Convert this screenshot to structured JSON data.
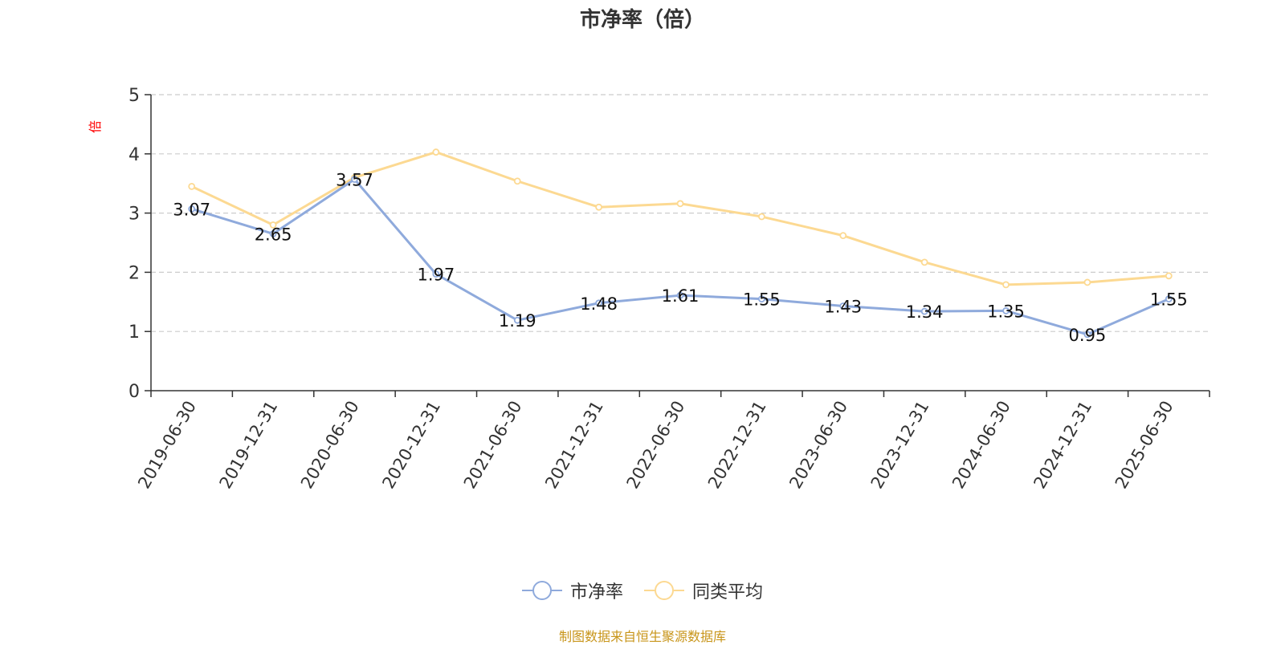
{
  "chart_data": {
    "type": "line",
    "title": "市净率（倍）",
    "ylabel": "倍",
    "xlabel": "",
    "ylim": [
      0,
      5
    ],
    "yticks": [
      0,
      1,
      2,
      3,
      4,
      5
    ],
    "grid": true,
    "legend_position": "bottom-center",
    "categories": [
      "2019-06-30",
      "2019-12-31",
      "2020-06-30",
      "2020-12-31",
      "2021-06-30",
      "2021-12-31",
      "2022-06-30",
      "2022-12-31",
      "2023-06-30",
      "2023-12-31",
      "2024-06-30",
      "2024-12-31",
      "2025-06-30"
    ],
    "series": [
      {
        "name": "市净率",
        "color": "#8faadc",
        "values": [
          3.07,
          2.65,
          3.57,
          1.97,
          1.19,
          1.48,
          1.61,
          1.55,
          1.43,
          1.34,
          1.35,
          0.95,
          1.55
        ],
        "labels": [
          "3.07",
          "2.65",
          "3.57",
          "1.97",
          "1.19",
          "1.48",
          "1.61",
          "1.55",
          "1.43",
          "1.34",
          "1.35",
          "0.95",
          "1.55"
        ]
      },
      {
        "name": "同类平均",
        "color": "#fcd992",
        "values": [
          3.45,
          2.8,
          3.6,
          4.03,
          3.54,
          3.1,
          3.16,
          2.94,
          2.62,
          2.17,
          1.79,
          1.83,
          1.94
        ]
      }
    ]
  },
  "source_text": "制图数据来自恒生聚源数据库",
  "colors": {
    "axis": "#333333",
    "grid": "#cccccc",
    "ylabel": "#ff0000",
    "source": "#c8951a"
  }
}
